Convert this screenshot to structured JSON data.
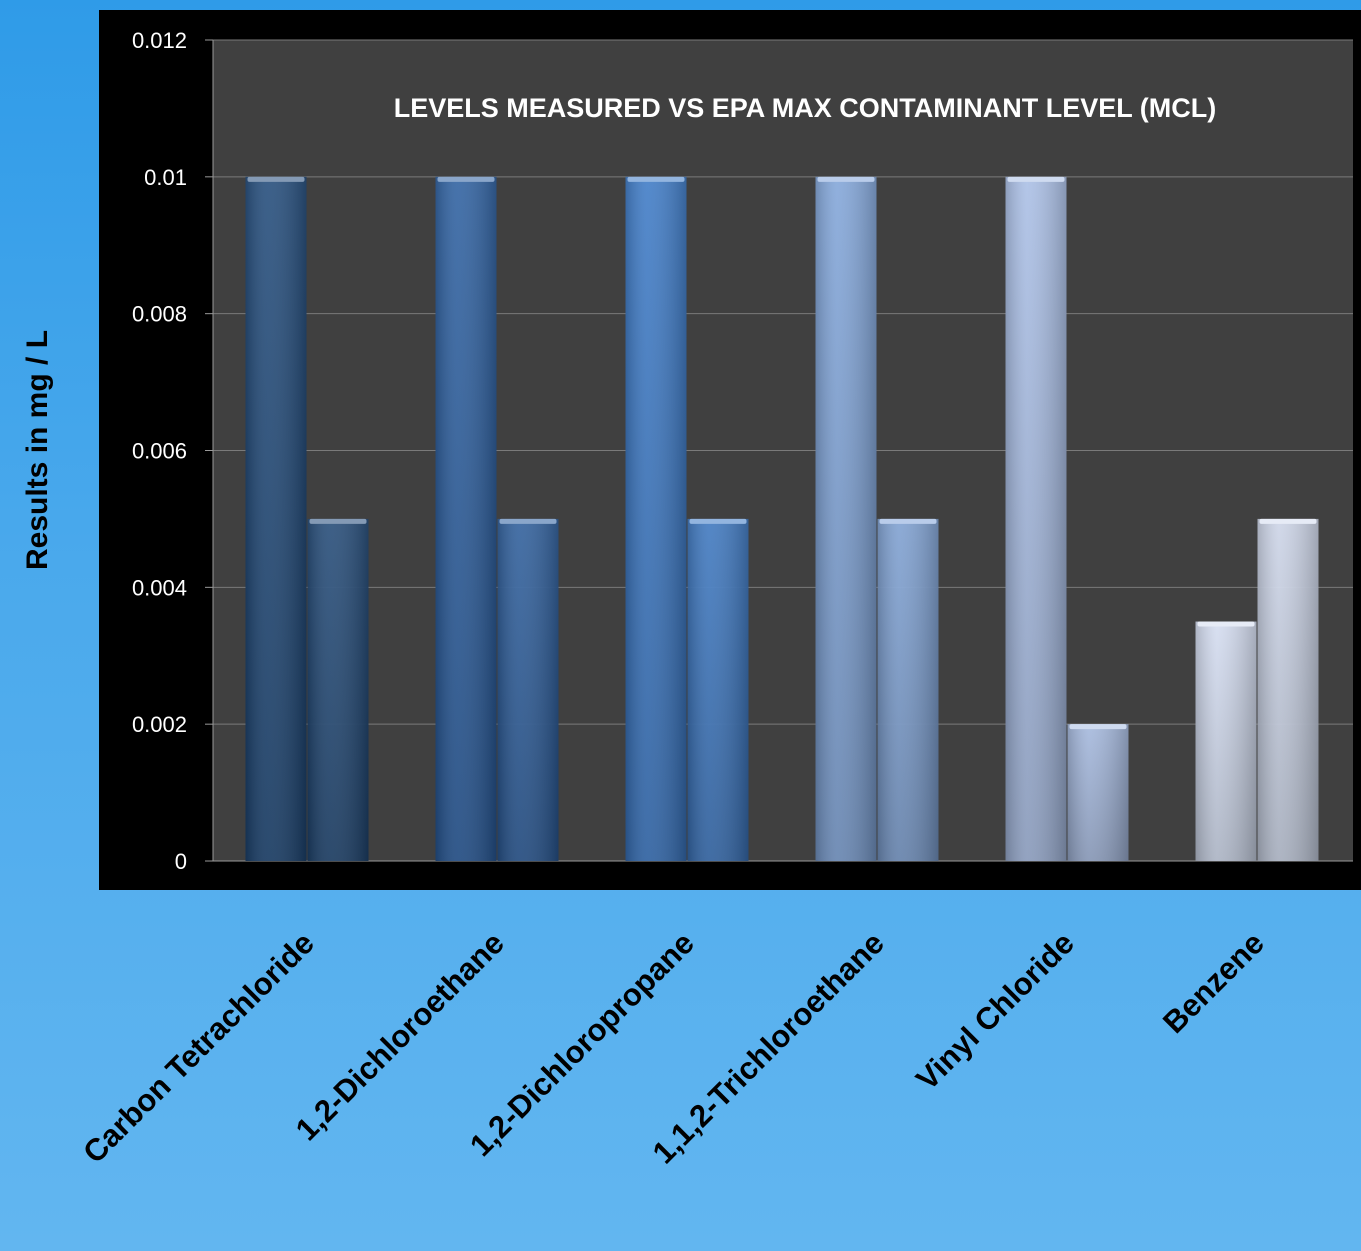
{
  "chart_data": {
    "type": "bar",
    "title": "LEVELS MEASURED VS EPA MAX CONTAMINANT LEVEL (MCL)",
    "xlabel": "",
    "ylabel": "Results in mg / L",
    "ylim": [
      0,
      0.012
    ],
    "yticks": [
      "0",
      "0.002",
      "0.004",
      "0.006",
      "0.008",
      "0.01",
      "0.012"
    ],
    "grid": true,
    "legend": "none",
    "categories": [
      "Carbon Tetrachloride",
      "1,2-Dichloroethane",
      "1,2-Dichloropropane",
      "1,1,2-Trichloroethane",
      "Vinyl Chloride",
      "Benzene"
    ],
    "series": [
      {
        "values": [
          0.01,
          0.01,
          0.01,
          0.01,
          0.01,
          0.0035
        ]
      },
      {
        "values": [
          0.005,
          0.005,
          0.005,
          0.005,
          0.002,
          0.005
        ]
      }
    ],
    "colors": [
      "#1f4878",
      "#2a5d9e",
      "#3a78c4",
      "#7fa3d8",
      "#a8bde4",
      "#d2dbef"
    ],
    "background_color": "#3f3f3f"
  }
}
